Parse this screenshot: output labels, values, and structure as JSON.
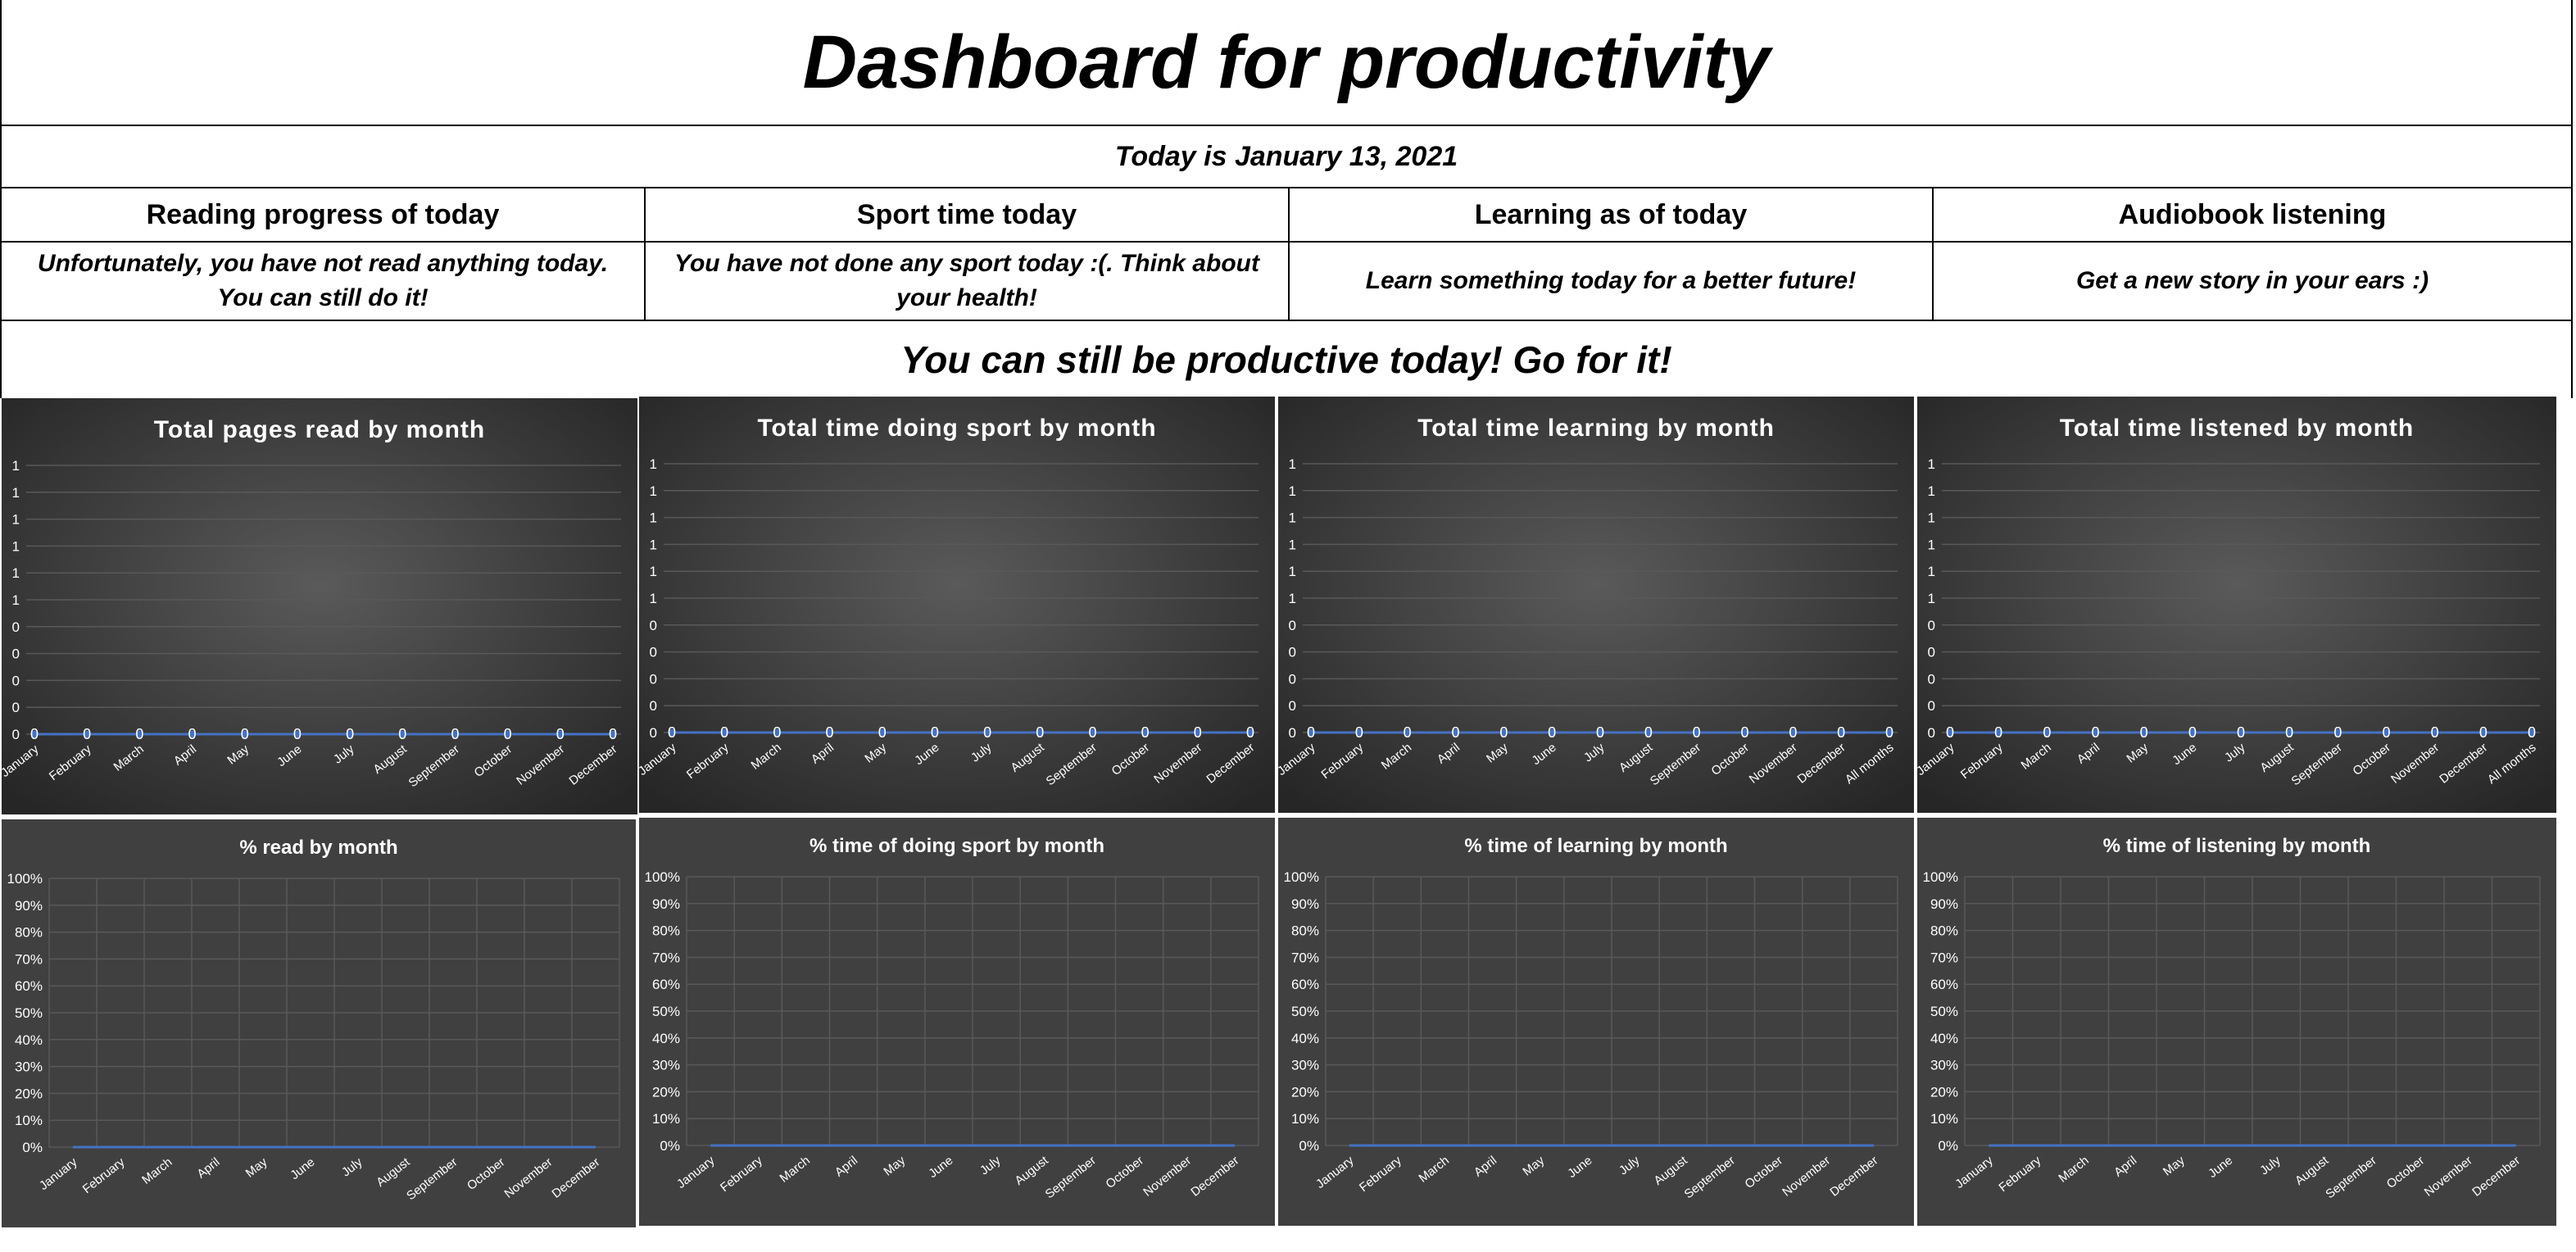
{
  "dashboard": {
    "title": "Dashboard for productivity",
    "date_line": "Today is January 13, 2021",
    "motto": "You can still be productive today! Go for it!",
    "sections": [
      {
        "header": "Reading progress of today",
        "message": "Unfortunately, you have not read anything today. You can still do it!"
      },
      {
        "header": "Sport time today",
        "message": "You have not done any sport today :(. Think about your health!"
      },
      {
        "header": "Learning as of today",
        "message": "Learn something today for a better future!"
      },
      {
        "header": "Audiobook listening",
        "message": "Get a new story in your ears :)"
      }
    ]
  },
  "colors": {
    "line": "#4472C4",
    "chart_bg_center": "#5a5a5a",
    "chart_bg_edge": "#262626",
    "pct_chart_bg": "#404040",
    "axis_text": "#ffffff",
    "grid": "#595959"
  },
  "chart_data": [
    {
      "type": "line",
      "title": "Total pages read by month",
      "categories": [
        "January",
        "February",
        "March",
        "April",
        "May",
        "June",
        "July",
        "August",
        "September",
        "October",
        "November",
        "December"
      ],
      "values": [
        0,
        0,
        0,
        0,
        0,
        0,
        0,
        0,
        0,
        0,
        0,
        0
      ],
      "data_labels": [
        "0",
        "0",
        "0",
        "0",
        "0",
        "0",
        "0",
        "0",
        "0",
        "0",
        "0",
        "0"
      ],
      "y_tick_labels": [
        "1",
        "1",
        "1",
        "1",
        "1",
        "1",
        "0",
        "0",
        "0",
        "0",
        "0"
      ],
      "ylim": [
        0,
        1
      ],
      "grid": true
    },
    {
      "type": "line",
      "title": "Total time doing sport by month",
      "categories": [
        "January",
        "February",
        "March",
        "April",
        "May",
        "June",
        "July",
        "August",
        "September",
        "October",
        "November",
        "December"
      ],
      "values": [
        0,
        0,
        0,
        0,
        0,
        0,
        0,
        0,
        0,
        0,
        0,
        0
      ],
      "data_labels": [
        "0",
        "0",
        "0",
        "0",
        "0",
        "0",
        "0",
        "0",
        "0",
        "0",
        "0",
        "0"
      ],
      "y_tick_labels": [
        "1",
        "1",
        "1",
        "1",
        "1",
        "1",
        "0",
        "0",
        "0",
        "0",
        "0"
      ],
      "ylim": [
        0,
        1
      ],
      "grid": true
    },
    {
      "type": "line",
      "title": "Total time learning by month",
      "categories": [
        "January",
        "February",
        "March",
        "April",
        "May",
        "June",
        "July",
        "August",
        "September",
        "October",
        "November",
        "December",
        "All months"
      ],
      "values": [
        0,
        0,
        0,
        0,
        0,
        0,
        0,
        0,
        0,
        0,
        0,
        0,
        0
      ],
      "data_labels": [
        "0",
        "0",
        "0",
        "0",
        "0",
        "0",
        "0",
        "0",
        "0",
        "0",
        "0",
        "0",
        "0"
      ],
      "y_tick_labels": [
        "1",
        "1",
        "1",
        "1",
        "1",
        "1",
        "0",
        "0",
        "0",
        "0",
        "0"
      ],
      "ylim": [
        0,
        1
      ],
      "grid": true
    },
    {
      "type": "line",
      "title": "Total time listened by month",
      "categories": [
        "January",
        "February",
        "March",
        "April",
        "May",
        "June",
        "July",
        "August",
        "September",
        "October",
        "November",
        "December",
        "All months"
      ],
      "values": [
        0,
        0,
        0,
        0,
        0,
        0,
        0,
        0,
        0,
        0,
        0,
        0,
        0
      ],
      "data_labels": [
        "0",
        "0",
        "0",
        "0",
        "0",
        "0",
        "0",
        "0",
        "0",
        "0",
        "0",
        "0",
        "0"
      ],
      "y_tick_labels": [
        "1",
        "1",
        "1",
        "1",
        "1",
        "1",
        "0",
        "0",
        "0",
        "0",
        "0"
      ],
      "ylim": [
        0,
        1
      ],
      "grid": true
    },
    {
      "type": "line",
      "title": "% read by month",
      "categories": [
        "January",
        "February",
        "March",
        "April",
        "May",
        "June",
        "July",
        "August",
        "September",
        "October",
        "November",
        "December"
      ],
      "values": [
        0,
        0,
        0,
        0,
        0,
        0,
        0,
        0,
        0,
        0,
        0,
        0
      ],
      "y_tick_labels": [
        "0%",
        "10%",
        "20%",
        "30%",
        "40%",
        "50%",
        "60%",
        "70%",
        "80%",
        "90%",
        "100%"
      ],
      "ylim": [
        0,
        100
      ],
      "grid": true
    },
    {
      "type": "line",
      "title": "% time of doing sport by month",
      "categories": [
        "January",
        "February",
        "March",
        "April",
        "May",
        "June",
        "July",
        "August",
        "September",
        "October",
        "November",
        "December"
      ],
      "values": [
        0,
        0,
        0,
        0,
        0,
        0,
        0,
        0,
        0,
        0,
        0,
        0
      ],
      "y_tick_labels": [
        "0%",
        "10%",
        "20%",
        "30%",
        "40%",
        "50%",
        "60%",
        "70%",
        "80%",
        "90%",
        "100%"
      ],
      "ylim": [
        0,
        100
      ],
      "grid": true
    },
    {
      "type": "line",
      "title": "% time of learning by month",
      "categories": [
        "January",
        "February",
        "March",
        "April",
        "May",
        "June",
        "July",
        "August",
        "September",
        "October",
        "November",
        "December"
      ],
      "values": [
        0,
        0,
        0,
        0,
        0,
        0,
        0,
        0,
        0,
        0,
        0,
        0
      ],
      "y_tick_labels": [
        "0%",
        "10%",
        "20%",
        "30%",
        "40%",
        "50%",
        "60%",
        "70%",
        "80%",
        "90%",
        "100%"
      ],
      "ylim": [
        0,
        100
      ],
      "grid": true
    },
    {
      "type": "line",
      "title": "% time of listening by month",
      "categories": [
        "January",
        "February",
        "March",
        "April",
        "May",
        "June",
        "July",
        "August",
        "September",
        "October",
        "November",
        "December"
      ],
      "values": [
        0,
        0,
        0,
        0,
        0,
        0,
        0,
        0,
        0,
        0,
        0,
        0
      ],
      "y_tick_labels": [
        "0%",
        "10%",
        "20%",
        "30%",
        "40%",
        "50%",
        "60%",
        "70%",
        "80%",
        "90%",
        "100%"
      ],
      "ylim": [
        0,
        100
      ],
      "grid": true
    }
  ]
}
